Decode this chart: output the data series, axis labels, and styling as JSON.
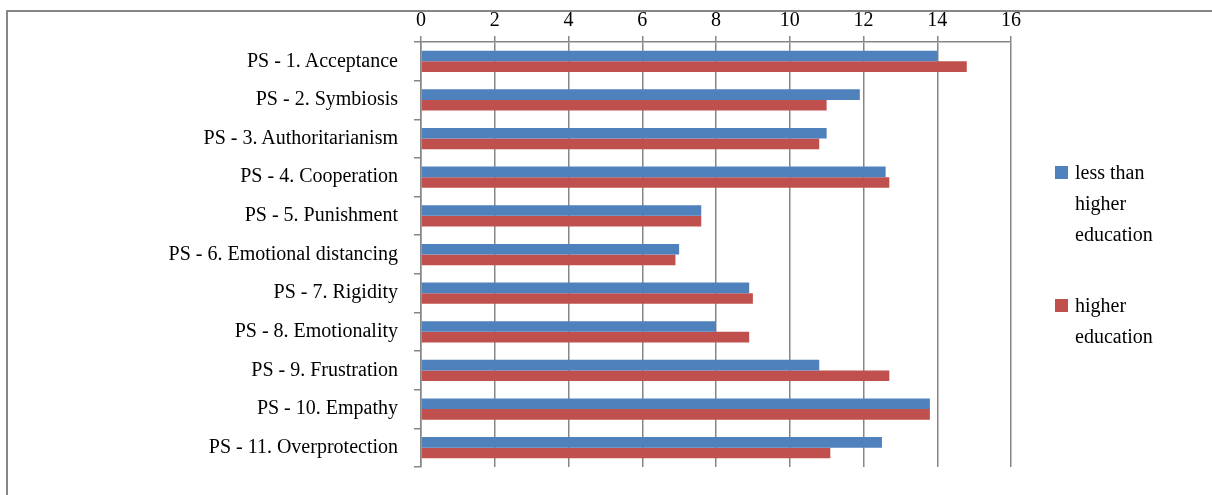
{
  "chart_data": {
    "type": "bar",
    "orientation": "horizontal",
    "categories": [
      "PS - 1. Acceptance",
      "PS - 2. Symbiosis",
      "PS - 3. Authoritarianism",
      "PS - 4. Cooperation",
      "PS - 5. Punishment",
      "PS - 6. Emotional distancing",
      "PS - 7. Rigidity",
      "PS - 8. Emotionality",
      "PS - 9. Frustration",
      "PS - 10. Empathy",
      "PS - 11. Overprotection"
    ],
    "series": [
      {
        "name": "less than higher education",
        "color": "#4f81bd",
        "values": [
          14.0,
          11.9,
          11.0,
          12.6,
          7.6,
          7.0,
          8.9,
          8.0,
          10.8,
          13.8,
          12.5
        ]
      },
      {
        "name": "higher education",
        "color": "#c0504d",
        "values": [
          14.8,
          11.0,
          10.8,
          12.7,
          7.6,
          6.9,
          9.0,
          8.9,
          12.7,
          13.8,
          11.1
        ]
      }
    ],
    "xlim": [
      0,
      16
    ],
    "xticks": [
      0,
      2,
      4,
      6,
      8,
      10,
      12,
      14,
      16
    ],
    "grid": "x",
    "legend": "right"
  }
}
